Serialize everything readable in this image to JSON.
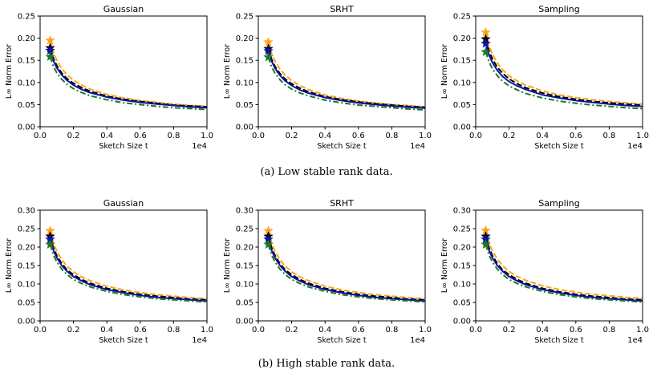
{
  "figure": {
    "captions": [
      "(a) Low stable rank data.",
      "(b) High stable rank data."
    ]
  },
  "chart_data": [
    {
      "type": "line",
      "title": "Gaussian",
      "xlabel": "Sketch Size t",
      "ylabel": "L∞ Norm Error",
      "x_offset_label": "1e4",
      "xlim": [
        0,
        1.0
      ],
      "ylim": [
        0,
        0.25
      ],
      "xticks": [
        "0.0",
        "0.2",
        "0.4",
        "0.6",
        "0.8",
        "1.0"
      ],
      "yticks": [
        "0.00",
        "0.05",
        "0.10",
        "0.15",
        "0.20",
        "0.25"
      ],
      "x": [
        0.06,
        0.08,
        0.1,
        0.13,
        0.16,
        0.2,
        0.25,
        0.3,
        0.4,
        0.5,
        0.6,
        0.7,
        0.8,
        0.9,
        1.0
      ],
      "series": [
        {
          "color": "#ffa319",
          "style": "dashed",
          "values": [
            0.195,
            0.168,
            0.15,
            0.131,
            0.118,
            0.105,
            0.094,
            0.085,
            0.073,
            0.065,
            0.059,
            0.055,
            0.051,
            0.048,
            0.046
          ]
        },
        {
          "color": "#000000",
          "style": "dashed",
          "values": [
            0.178,
            0.154,
            0.138,
            0.121,
            0.109,
            0.098,
            0.088,
            0.08,
            0.069,
            0.062,
            0.057,
            0.053,
            0.049,
            0.047,
            0.045
          ]
        },
        {
          "color": "#0b13a6",
          "style": "solid",
          "values": [
            0.172,
            0.149,
            0.133,
            0.117,
            0.105,
            0.094,
            0.084,
            0.077,
            0.067,
            0.06,
            0.055,
            0.051,
            0.048,
            0.045,
            0.043
          ]
        },
        {
          "color": "#1f7a1f",
          "style": "dashdot",
          "values": [
            0.158,
            0.136,
            0.122,
            0.107,
            0.096,
            0.086,
            0.077,
            0.07,
            0.061,
            0.054,
            0.05,
            0.046,
            0.043,
            0.041,
            0.039
          ]
        }
      ]
    },
    {
      "type": "line",
      "title": "SRHT",
      "xlabel": "Sketch Size t",
      "ylabel": "L∞ Norm Error",
      "x_offset_label": "1e4",
      "xlim": [
        0,
        1.0
      ],
      "ylim": [
        0,
        0.25
      ],
      "xticks": [
        "0.0",
        "0.2",
        "0.4",
        "0.6",
        "0.8",
        "1.0"
      ],
      "yticks": [
        "0.00",
        "0.05",
        "0.10",
        "0.15",
        "0.20",
        "0.25"
      ],
      "x": [
        0.06,
        0.08,
        0.1,
        0.13,
        0.16,
        0.2,
        0.25,
        0.3,
        0.4,
        0.5,
        0.6,
        0.7,
        0.8,
        0.9,
        1.0
      ],
      "series": [
        {
          "color": "#ffa319",
          "style": "dashed",
          "values": [
            0.191,
            0.165,
            0.148,
            0.13,
            0.117,
            0.104,
            0.093,
            0.084,
            0.072,
            0.064,
            0.058,
            0.054,
            0.05,
            0.048,
            0.045
          ]
        },
        {
          "color": "#000000",
          "style": "dashed",
          "values": [
            0.176,
            0.152,
            0.136,
            0.12,
            0.108,
            0.097,
            0.087,
            0.079,
            0.068,
            0.061,
            0.056,
            0.052,
            0.049,
            0.046,
            0.044
          ]
        },
        {
          "color": "#0b13a6",
          "style": "solid",
          "values": [
            0.171,
            0.148,
            0.132,
            0.116,
            0.104,
            0.093,
            0.083,
            0.076,
            0.066,
            0.059,
            0.054,
            0.05,
            0.047,
            0.044,
            0.042
          ]
        },
        {
          "color": "#1f7a1f",
          "style": "dashdot",
          "values": [
            0.157,
            0.135,
            0.121,
            0.106,
            0.095,
            0.085,
            0.076,
            0.07,
            0.06,
            0.054,
            0.049,
            0.046,
            0.043,
            0.04,
            0.038
          ]
        }
      ]
    },
    {
      "type": "line",
      "title": "Sampling",
      "xlabel": "Sketch Size t",
      "ylabel": "L∞ Norm Error",
      "x_offset_label": "1e4",
      "xlim": [
        0,
        1.0
      ],
      "ylim": [
        0,
        0.25
      ],
      "xticks": [
        "0.0",
        "0.2",
        "0.4",
        "0.6",
        "0.8",
        "1.0"
      ],
      "yticks": [
        "0.00",
        "0.05",
        "0.10",
        "0.15",
        "0.20",
        "0.25"
      ],
      "x": [
        0.06,
        0.08,
        0.1,
        0.13,
        0.16,
        0.2,
        0.25,
        0.3,
        0.4,
        0.5,
        0.6,
        0.7,
        0.8,
        0.9,
        1.0
      ],
      "series": [
        {
          "color": "#ffa319",
          "style": "dashed",
          "values": [
            0.213,
            0.183,
            0.164,
            0.144,
            0.129,
            0.115,
            0.103,
            0.094,
            0.081,
            0.072,
            0.066,
            0.061,
            0.057,
            0.054,
            0.051
          ]
        },
        {
          "color": "#000000",
          "style": "dashed",
          "values": [
            0.198,
            0.171,
            0.153,
            0.134,
            0.121,
            0.108,
            0.097,
            0.088,
            0.076,
            0.068,
            0.062,
            0.057,
            0.054,
            0.051,
            0.049
          ]
        },
        {
          "color": "#0b13a6",
          "style": "solid",
          "values": [
            0.188,
            0.162,
            0.145,
            0.127,
            0.114,
            0.102,
            0.092,
            0.084,
            0.072,
            0.065,
            0.059,
            0.055,
            0.051,
            0.048,
            0.046
          ]
        },
        {
          "color": "#1f7a1f",
          "style": "dashdot",
          "values": [
            0.169,
            0.146,
            0.131,
            0.115,
            0.103,
            0.092,
            0.083,
            0.075,
            0.065,
            0.058,
            0.053,
            0.049,
            0.046,
            0.043,
            0.041
          ]
        }
      ]
    },
    {
      "type": "line",
      "title": "Gaussian",
      "xlabel": "Sketch Size t",
      "ylabel": "L∞ Norm Error",
      "x_offset_label": "1e4",
      "xlim": [
        0,
        1.0
      ],
      "ylim": [
        0,
        0.3
      ],
      "xticks": [
        "0.0",
        "0.2",
        "0.4",
        "0.6",
        "0.8",
        "1.0"
      ],
      "yticks": [
        "0.00",
        "0.05",
        "0.10",
        "0.15",
        "0.20",
        "0.25",
        "0.30"
      ],
      "x": [
        0.06,
        0.08,
        0.1,
        0.13,
        0.16,
        0.2,
        0.25,
        0.3,
        0.4,
        0.5,
        0.6,
        0.7,
        0.8,
        0.9,
        1.0
      ],
      "series": [
        {
          "color": "#ffa319",
          "style": "dashed",
          "values": [
            0.244,
            0.211,
            0.189,
            0.166,
            0.149,
            0.133,
            0.119,
            0.109,
            0.094,
            0.084,
            0.077,
            0.071,
            0.067,
            0.063,
            0.06
          ]
        },
        {
          "color": "#000000",
          "style": "dashed",
          "values": [
            0.229,
            0.198,
            0.177,
            0.155,
            0.139,
            0.125,
            0.112,
            0.102,
            0.088,
            0.079,
            0.072,
            0.067,
            0.063,
            0.059,
            0.057
          ]
        },
        {
          "color": "#0b13a6",
          "style": "solid",
          "values": [
            0.221,
            0.191,
            0.171,
            0.15,
            0.135,
            0.12,
            0.108,
            0.098,
            0.085,
            0.076,
            0.069,
            0.064,
            0.06,
            0.057,
            0.054
          ]
        },
        {
          "color": "#1f7a1f",
          "style": "dashdot",
          "values": [
            0.207,
            0.178,
            0.16,
            0.14,
            0.126,
            0.112,
            0.101,
            0.092,
            0.08,
            0.071,
            0.065,
            0.06,
            0.057,
            0.054,
            0.051
          ]
        }
      ]
    },
    {
      "type": "line",
      "title": "SRHT",
      "xlabel": "Sketch Size t",
      "ylabel": "L∞ Norm Error",
      "x_offset_label": "1e4",
      "xlim": [
        0,
        1.0
      ],
      "ylim": [
        0,
        0.3
      ],
      "xticks": [
        "0.0",
        "0.2",
        "0.4",
        "0.6",
        "0.8",
        "1.0"
      ],
      "yticks": [
        "0.00",
        "0.05",
        "0.10",
        "0.15",
        "0.20",
        "0.25",
        "0.30"
      ],
      "x": [
        0.06,
        0.08,
        0.1,
        0.13,
        0.16,
        0.2,
        0.25,
        0.3,
        0.4,
        0.5,
        0.6,
        0.7,
        0.8,
        0.9,
        1.0
      ],
      "series": [
        {
          "color": "#ffa319",
          "style": "dashed",
          "values": [
            0.244,
            0.211,
            0.189,
            0.166,
            0.149,
            0.133,
            0.119,
            0.109,
            0.094,
            0.084,
            0.077,
            0.071,
            0.067,
            0.063,
            0.06
          ]
        },
        {
          "color": "#000000",
          "style": "dashed",
          "values": [
            0.229,
            0.198,
            0.177,
            0.155,
            0.139,
            0.125,
            0.112,
            0.102,
            0.088,
            0.079,
            0.072,
            0.067,
            0.063,
            0.059,
            0.057
          ]
        },
        {
          "color": "#0b13a6",
          "style": "solid",
          "values": [
            0.221,
            0.191,
            0.171,
            0.15,
            0.135,
            0.12,
            0.108,
            0.098,
            0.085,
            0.076,
            0.069,
            0.064,
            0.06,
            0.057,
            0.054
          ]
        },
        {
          "color": "#1f7a1f",
          "style": "dashdot",
          "values": [
            0.207,
            0.178,
            0.16,
            0.14,
            0.126,
            0.112,
            0.101,
            0.092,
            0.08,
            0.071,
            0.065,
            0.06,
            0.057,
            0.054,
            0.051
          ]
        }
      ]
    },
    {
      "type": "line",
      "title": "Sampling",
      "xlabel": "Sketch Size t",
      "ylabel": "L∞ Norm Error",
      "x_offset_label": "1e4",
      "xlim": [
        0,
        1.0
      ],
      "ylim": [
        0,
        0.3
      ],
      "xticks": [
        "0.0",
        "0.2",
        "0.4",
        "0.6",
        "0.8",
        "1.0"
      ],
      "yticks": [
        "0.00",
        "0.05",
        "0.10",
        "0.15",
        "0.20",
        "0.25",
        "0.30"
      ],
      "x": [
        0.06,
        0.08,
        0.1,
        0.13,
        0.16,
        0.2,
        0.25,
        0.3,
        0.4,
        0.5,
        0.6,
        0.7,
        0.8,
        0.9,
        1.0
      ],
      "series": [
        {
          "color": "#ffa319",
          "style": "dashed",
          "values": [
            0.245,
            0.212,
            0.19,
            0.167,
            0.15,
            0.134,
            0.12,
            0.11,
            0.095,
            0.085,
            0.078,
            0.072,
            0.068,
            0.064,
            0.061
          ]
        },
        {
          "color": "#000000",
          "style": "dashed",
          "values": [
            0.229,
            0.198,
            0.177,
            0.155,
            0.139,
            0.125,
            0.112,
            0.102,
            0.088,
            0.079,
            0.072,
            0.067,
            0.063,
            0.059,
            0.057
          ]
        },
        {
          "color": "#0b13a6",
          "style": "solid",
          "values": [
            0.221,
            0.191,
            0.171,
            0.15,
            0.135,
            0.12,
            0.108,
            0.098,
            0.085,
            0.076,
            0.069,
            0.064,
            0.06,
            0.057,
            0.054
          ]
        },
        {
          "color": "#1f7a1f",
          "style": "dashdot",
          "values": [
            0.207,
            0.178,
            0.16,
            0.14,
            0.126,
            0.112,
            0.101,
            0.092,
            0.08,
            0.071,
            0.065,
            0.06,
            0.057,
            0.054,
            0.051
          ]
        }
      ]
    }
  ]
}
